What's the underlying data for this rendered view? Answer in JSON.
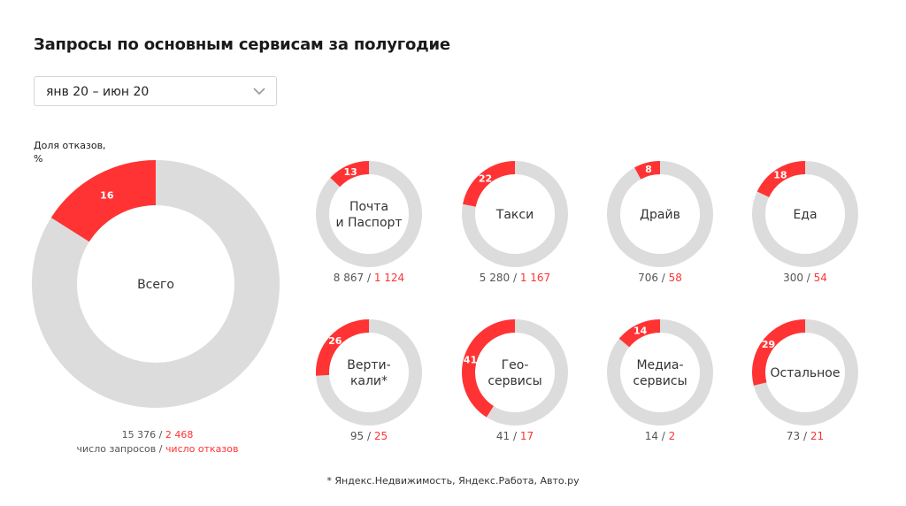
{
  "title": "Запросы по основным сервисам за полугодие",
  "period_select": {
    "value": "янв 20 – июн 20",
    "icon": "chevron-down-icon"
  },
  "colors": {
    "failed": "#ff3333",
    "track": "#dcdcdc",
    "text": "#1a1a1a",
    "muted": "#555555"
  },
  "chart_data": {
    "type": "donut",
    "ylabel": "Доля отказов, %",
    "legend": {
      "requests": "число запросов",
      "separator": " / ",
      "failures": "число отказов"
    },
    "footnote": "* Яндекс.Недвижимость, Яндекс.Работа, Авто.ру",
    "total": {
      "name": "Всего",
      "percent": 16,
      "requests": "15 376",
      "failures": "2 468"
    },
    "services": [
      {
        "name": "Почта\nи Паспорт",
        "percent": 13,
        "requests": "8 867",
        "failures": "1 124"
      },
      {
        "name": "Такси",
        "percent": 22,
        "requests": "5 280",
        "failures": "1 167"
      },
      {
        "name": "Драйв",
        "percent": 8,
        "requests": "706",
        "failures": "58"
      },
      {
        "name": "Еда",
        "percent": 18,
        "requests": "300",
        "failures": "54"
      },
      {
        "name": "Верти-\nкали*",
        "percent": 26,
        "requests": "95",
        "failures": "25"
      },
      {
        "name": "Гео-\nсервисы",
        "percent": 41,
        "requests": "41",
        "failures": "17"
      },
      {
        "name": "Медиа-\nсервисы",
        "percent": 14,
        "requests": "14",
        "failures": "2"
      },
      {
        "name": "Остальное",
        "percent": 29,
        "requests": "73",
        "failures": "21"
      }
    ]
  }
}
